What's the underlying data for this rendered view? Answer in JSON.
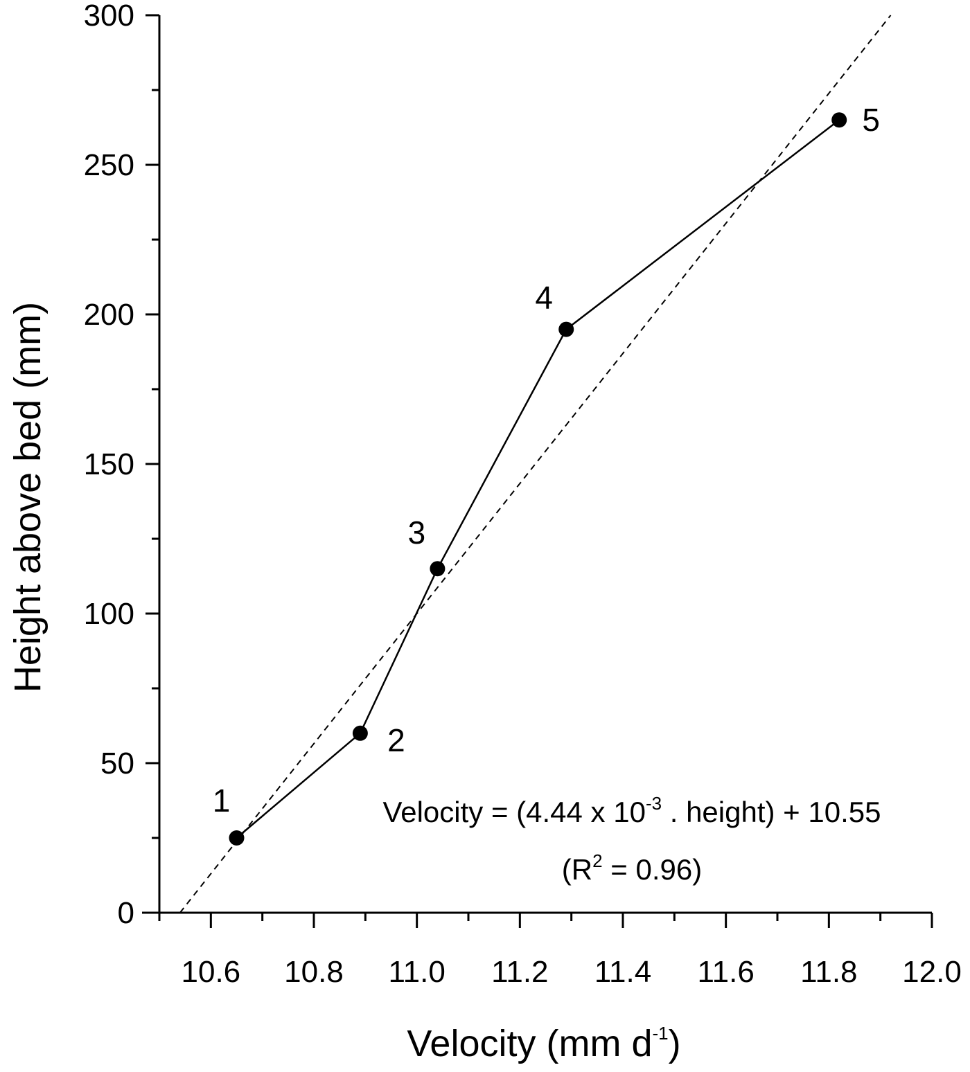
{
  "chart_data": {
    "type": "line",
    "xlabel": "Velocity (mm d",
    "xlabel_sup": "-1",
    "xlabel_end": ")",
    "ylabel": "Height above bed (mm)",
    "xlim": [
      10.5,
      12.0
    ],
    "ylim": [
      0,
      300
    ],
    "xticks": [
      "10.6",
      "10.8",
      "11.0",
      "11.2",
      "11.4",
      "11.6",
      "11.8",
      "12.0"
    ],
    "yticks": [
      "0",
      "50",
      "100",
      "150",
      "200",
      "250",
      "300"
    ],
    "grid": false,
    "series": [
      {
        "points": [
          {
            "label": "1",
            "x": 10.65,
            "y": 25
          },
          {
            "label": "2",
            "x": 10.89,
            "y": 60
          },
          {
            "label": "3",
            "x": 11.04,
            "y": 115
          },
          {
            "label": "4",
            "x": 11.29,
            "y": 195
          },
          {
            "label": "5",
            "x": 11.82,
            "y": 265
          }
        ]
      }
    ],
    "fit_line": {
      "x": [
        10.54,
        11.92
      ],
      "y": [
        0,
        300
      ],
      "style": "dashed"
    },
    "annotations": {
      "equation_a": "Velocity = (4.44 x 10",
      "equation_sup": "-3",
      "equation_b": " . height) + 10.55",
      "r2_a": "(R",
      "r2_sup": "2",
      "r2_b": " = 0.96)"
    }
  }
}
